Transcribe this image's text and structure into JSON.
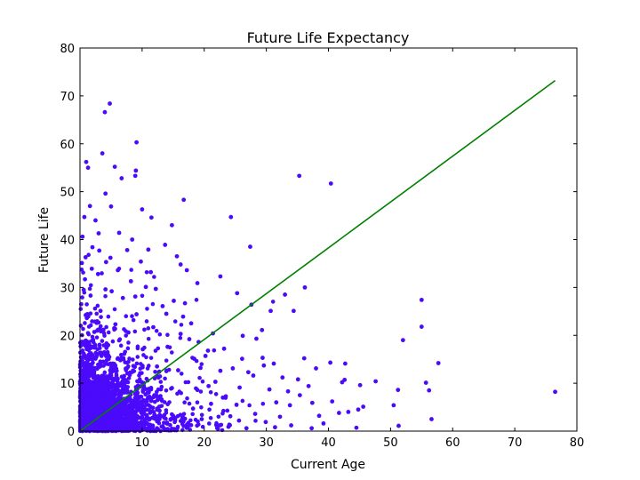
{
  "chart_data": {
    "type": "scatter",
    "title": "Future Life Expectancy",
    "xlabel": "Current Age",
    "ylabel": "Future Life",
    "xlim": [
      0,
      80
    ],
    "ylim": [
      0,
      80
    ],
    "xticks": [
      0,
      10,
      20,
      30,
      40,
      50,
      60,
      70,
      80
    ],
    "yticks": [
      0,
      10,
      20,
      30,
      40,
      50,
      60,
      70,
      80
    ],
    "grid": false,
    "legend": "none",
    "series": [
      {
        "kind": "scatter",
        "color": "#4b0afa",
        "points": [
          [
            1,
            56.2
          ],
          [
            1.3,
            55
          ],
          [
            3.6,
            58
          ],
          [
            4,
            66.6
          ],
          [
            4.8,
            68.4
          ],
          [
            5.6,
            55.2
          ],
          [
            6.7,
            52.8
          ],
          [
            9,
            54.4
          ],
          [
            9.1,
            60.3
          ],
          [
            8.9,
            53.3
          ],
          [
            4.1,
            49.6
          ],
          [
            1.6,
            47
          ],
          [
            0.7,
            44.7
          ],
          [
            5,
            46.9
          ],
          [
            2.5,
            44
          ],
          [
            3,
            41.3
          ],
          [
            10,
            46.3
          ],
          [
            11.5,
            44.6
          ],
          [
            14.8,
            43
          ],
          [
            16.7,
            48.3
          ],
          [
            24.3,
            44.7
          ],
          [
            35.3,
            53.3
          ],
          [
            40.4,
            51.7
          ],
          [
            27.4,
            38.5
          ],
          [
            0.4,
            40.6
          ],
          [
            8.4,
            40
          ],
          [
            11,
            37.9
          ],
          [
            13.7,
            38.9
          ],
          [
            15.6,
            36.5
          ],
          [
            16.2,
            34.8
          ],
          [
            17.2,
            33.6
          ],
          [
            22.6,
            32.3
          ],
          [
            18.9,
            30.9
          ],
          [
            25.3,
            28.8
          ],
          [
            33,
            28.5
          ],
          [
            36.2,
            30
          ],
          [
            34.4,
            25.1
          ],
          [
            27.6,
            26.4
          ],
          [
            30.7,
            25.1
          ],
          [
            29.3,
            21.1
          ],
          [
            26.2,
            19.9
          ],
          [
            28.4,
            19.3
          ],
          [
            29.4,
            15.3
          ],
          [
            31.2,
            14.1
          ],
          [
            36.1,
            15.2
          ],
          [
            38,
            13.1
          ],
          [
            40.3,
            14.3
          ],
          [
            42.7,
            14.1
          ],
          [
            42.6,
            10.7
          ],
          [
            42.2,
            10.2
          ],
          [
            45.1,
            9.6
          ],
          [
            44.8,
            4.5
          ],
          [
            47.6,
            10.4
          ],
          [
            45.6,
            5.1
          ],
          [
            43.2,
            4
          ],
          [
            50.5,
            5.4
          ],
          [
            51.2,
            8.6
          ],
          [
            52,
            19
          ],
          [
            55,
            27.4
          ],
          [
            55,
            21.8
          ],
          [
            57.7,
            14.2
          ],
          [
            55.7,
            10.1
          ],
          [
            56.2,
            8.5
          ],
          [
            56.6,
            2.5
          ],
          [
            51.3,
            1.1
          ],
          [
            76.5,
            8.2
          ],
          [
            38.5,
            3.2
          ],
          [
            39.2,
            1.6
          ],
          [
            37.3,
            0.6
          ],
          [
            40.6,
            6.2
          ],
          [
            41.7,
            3.8
          ],
          [
            44.5,
            0.7
          ],
          [
            35.4,
            7.5
          ],
          [
            36.8,
            9.4
          ],
          [
            33.8,
            5.4
          ],
          [
            32.2,
            3
          ],
          [
            30.5,
            8.7
          ],
          [
            31.6,
            6
          ],
          [
            34,
            1.2
          ],
          [
            27.1,
            12.3
          ],
          [
            25.7,
            9.1
          ],
          [
            25.2,
            5.5
          ],
          [
            24.2,
            3.1
          ],
          [
            23,
            7
          ],
          [
            22.6,
            12.6
          ],
          [
            21.8,
            10.3
          ],
          [
            20.2,
            15.7
          ],
          [
            19.4,
            13.2
          ],
          [
            18.9,
            8.6
          ],
          [
            18.2,
            4.7
          ],
          [
            17.6,
            19.2
          ],
          [
            16.6,
            23.9
          ],
          [
            15.8,
            12.7
          ],
          [
            14.8,
            9
          ],
          [
            14.1,
            17.6
          ],
          [
            13.3,
            26.1
          ],
          [
            12.4,
            13.5
          ],
          [
            11.8,
            21.7
          ],
          [
            11.2,
            6.9
          ],
          [
            10.6,
            30.1
          ],
          [
            10.1,
            17.1
          ],
          [
            9.6,
            9.3
          ],
          [
            9.1,
            24.4
          ],
          [
            8.6,
            13.6
          ],
          [
            8.2,
            31.3
          ],
          [
            7.8,
            20.6
          ],
          [
            7.3,
            6.3
          ],
          [
            6.9,
            27.8
          ],
          [
            6.5,
            14.8
          ],
          [
            6.1,
            33.6
          ],
          [
            5.7,
            22.3
          ],
          [
            5.3,
            9.8
          ],
          [
            4.9,
            36.2
          ],
          [
            4.5,
            17.9
          ],
          [
            4.1,
            29.6
          ],
          [
            3.7,
            11.4
          ],
          [
            3.3,
            25.1
          ],
          [
            2.9,
            32.8
          ],
          [
            2.6,
            15.5
          ],
          [
            2.3,
            20.7
          ],
          [
            2,
            38.4
          ],
          [
            1.7,
            28.3
          ],
          [
            1.4,
            12.9
          ],
          [
            1.1,
            23.6
          ],
          [
            0.8,
            31.7
          ],
          [
            0.5,
            18.3
          ],
          [
            0.3,
            35.1
          ],
          [
            0.2,
            26.5
          ],
          [
            2.7,
            9.7
          ],
          [
            3.9,
            7.9
          ],
          [
            22.5,
            1.2
          ],
          [
            26.8,
            0.6
          ],
          [
            29.9,
            1.9
          ],
          [
            19.6,
            2.5
          ],
          [
            21.1,
            5.7
          ],
          [
            23.9,
            0.9
          ],
          [
            28.2,
            3.6
          ],
          [
            31.4,
            0.8
          ],
          [
            25.6,
            2.2
          ],
          [
            20.7,
            9.4
          ],
          [
            18.4,
            15.1
          ],
          [
            16.2,
            20.3
          ],
          [
            15.1,
            27.2
          ],
          [
            13.9,
            24.5
          ],
          [
            12.2,
            29.7
          ],
          [
            11.4,
            33.2
          ],
          [
            9.8,
            35.4
          ],
          [
            8.9,
            28.1
          ],
          [
            7.6,
            37.8
          ],
          [
            6.3,
            41.4
          ],
          [
            5.1,
            29.2
          ],
          [
            4.2,
            35.3
          ],
          [
            3.1,
            37.7
          ],
          [
            1.9,
            33.9
          ],
          [
            0.9,
            36.3
          ],
          [
            0.6,
            29.5
          ],
          [
            16.9,
            26.7
          ],
          [
            17.9,
            22.5
          ],
          [
            19.1,
            18.6
          ],
          [
            20.6,
            16.8
          ],
          [
            21.4,
            20.4
          ],
          [
            23.2,
            17.2
          ],
          [
            24.6,
            13.1
          ],
          [
            26.1,
            15.1
          ],
          [
            27.9,
            11.6
          ],
          [
            29.6,
            13.7
          ],
          [
            32.6,
            11.2
          ],
          [
            33.5,
            8.3
          ],
          [
            35.1,
            10.8
          ],
          [
            37.4,
            5.9
          ]
        ]
      },
      {
        "kind": "line",
        "color": "#008000",
        "points": [
          [
            0,
            0
          ],
          [
            76.5,
            73.2
          ]
        ]
      }
    ]
  }
}
